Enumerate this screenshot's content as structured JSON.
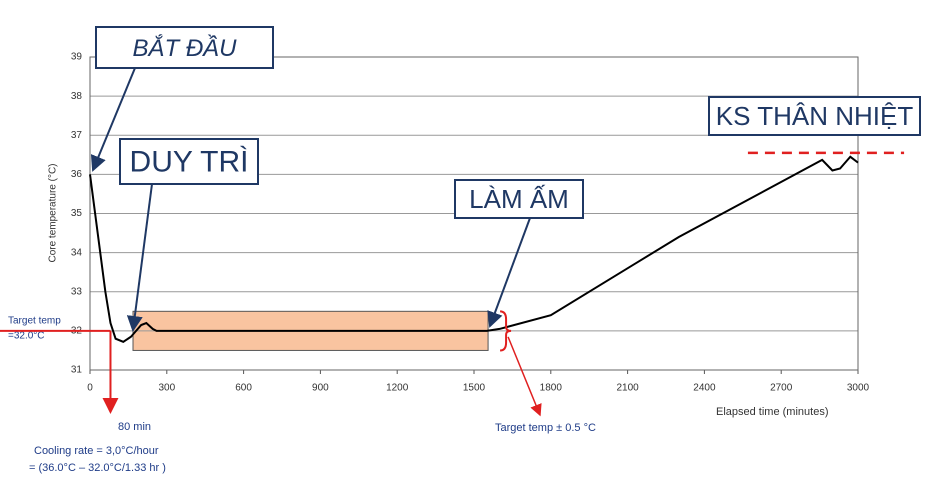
{
  "chart_data": {
    "type": "line",
    "y_label": "Core temperature (°C)",
    "x_label": "Elapsed time (minutes)",
    "x": [
      0,
      20,
      40,
      60,
      80,
      100,
      130,
      160,
      180,
      200,
      220,
      245,
      260,
      600,
      1000,
      1400,
      1550,
      1600,
      1800,
      2300,
      2860,
      2900,
      2930,
      2970,
      3000
    ],
    "values": [
      36,
      35,
      34,
      33,
      32.2,
      31.8,
      31.72,
      31.85,
      32.0,
      32.15,
      32.2,
      32.05,
      32.0,
      32.0,
      32.0,
      32.0,
      32.0,
      32.05,
      32.4,
      34.4,
      36.37,
      36.1,
      36.15,
      36.45,
      36.3
    ],
    "color": "#000000",
    "xlim": [
      0,
      3000
    ],
    "xticks": [
      0,
      300,
      600,
      900,
      1200,
      1500,
      1800,
      2100,
      2400,
      2700,
      3000
    ],
    "ylim": [
      31,
      39
    ],
    "yticks": [
      31,
      32,
      33,
      34,
      35,
      36,
      37,
      38,
      39
    ],
    "grid": true,
    "band": {
      "xlim": [
        168,
        1555
      ],
      "ylim": [
        31.5,
        32.5
      ],
      "color": "#f9c4a0"
    },
    "goal_line": {
      "value": 36.55,
      "xlim": [
        2570,
        3180
      ],
      "color": "#e02020"
    },
    "reference_color": "#e02020",
    "target_temp": 32,
    "cooling_end": 80,
    "annotations": [
      "BẮT ĐẦU",
      "DUY TRÌ",
      "LÀM ẤM",
      "KS THÂN NHIỆT"
    ],
    "notes": {
      "target_temp": [
        "Target temp",
        "=32.0°C"
      ],
      "cooling_end": "80 min",
      "cooling_rate": [
        "Cooling rate = 3,0°C/hour",
        "= (36.0°C – 32.0°C/1.33 hr )"
      ],
      "tolerance": "Target temp ± 0.5 °C"
    }
  }
}
